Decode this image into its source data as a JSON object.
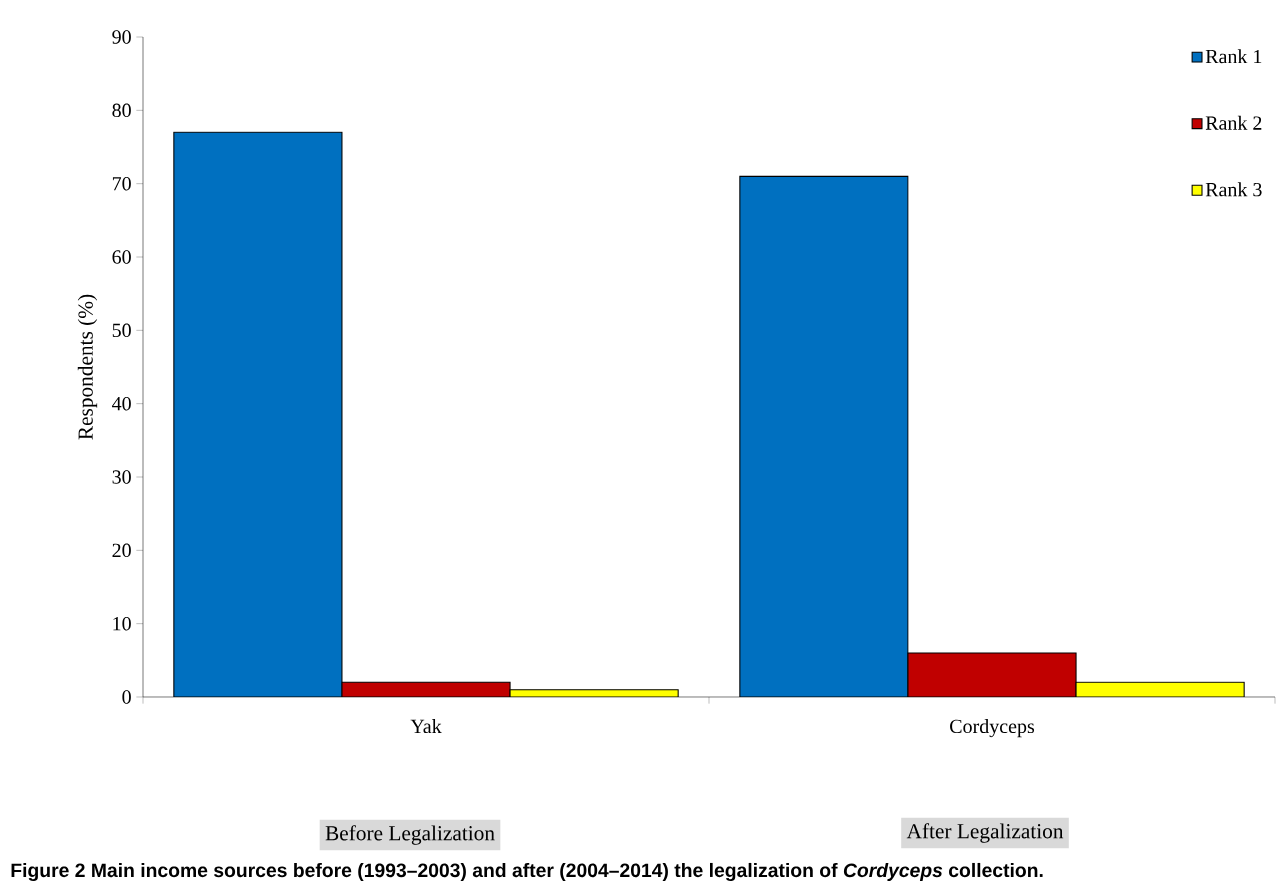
{
  "chart_data": {
    "type": "bar",
    "ylabel": "Respondents (%)",
    "categories": [
      "Yak",
      "Cordyceps"
    ],
    "series": [
      {
        "name": "Rank 1",
        "color": "#0070c0",
        "values": [
          77,
          71
        ]
      },
      {
        "name": "Rank 2",
        "color": "#c00000",
        "values": [
          2,
          6
        ]
      },
      {
        "name": "Rank 3",
        "color": "#ffff00",
        "values": [
          1,
          2
        ]
      }
    ],
    "ylim": [
      0,
      90
    ],
    "yticks": [
      0,
      10,
      20,
      30,
      40,
      50,
      60,
      70,
      80,
      90
    ],
    "legend": "top right",
    "grid": false,
    "annotations": [
      "Before Legalization",
      "After Legalization",
      "Figure 2 Main income sources before (1993–2003) and after (2004–2014) the legalization of *Cordyceps* collection."
    ]
  }
}
